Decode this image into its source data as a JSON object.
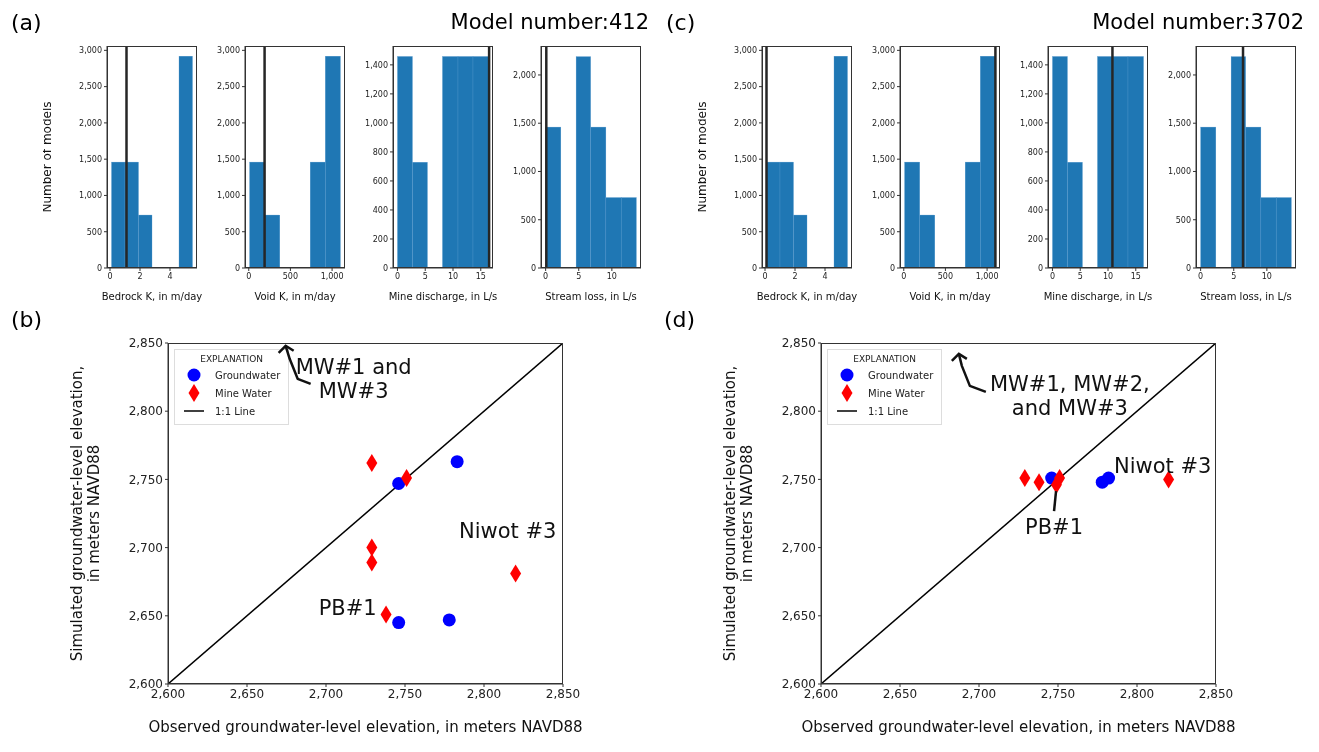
{
  "chart_data": [
    {
      "type": "histogram",
      "annotations": [
        "(a)"
      ],
      "ylabel": "Number of models",
      "xlabel": "Bedrock K, in m/day",
      "color": "#1f77b4",
      "bins": [
        0.1,
        1.0,
        1.9,
        2.8,
        3.7,
        4.6,
        5.5
      ],
      "values": [
        1460,
        1460,
        730,
        0,
        0,
        2920
      ],
      "xlim": [
        -0.2,
        5.8
      ],
      "xticks": [
        0,
        2,
        4
      ],
      "ylim": [
        0,
        3060
      ],
      "yticks": [
        0,
        500,
        {
          "value": 1000,
          "label": "1,000"
        },
        {
          "value": 1500,
          "label": "1,500"
        },
        {
          "value": 2000,
          "label": "2,000"
        },
        {
          "value": 2500,
          "label": "2,500"
        },
        {
          "value": 3000,
          "label": "3,000"
        }
      ],
      "ref_lines": [
        {
          "axis": "x",
          "value": 1.1,
          "color": "#262626"
        }
      ]
    },
    {
      "type": "histogram",
      "xlabel": "Void K, in m/day",
      "color": "#1f77b4",
      "bins": [
        10,
        192,
        373,
        555,
        737,
        918,
        1100
      ],
      "values": [
        1460,
        730,
        0,
        0,
        1460,
        2920
      ],
      "xlim": [
        -45,
        1155
      ],
      "xticks": [
        0,
        500,
        {
          "value": 1000,
          "label": "1,000"
        }
      ],
      "ylim": [
        0,
        3060
      ],
      "yticks": [
        0,
        500,
        {
          "value": 1000,
          "label": "1,000"
        },
        {
          "value": 1500,
          "label": "1,500"
        },
        {
          "value": 2000,
          "label": "2,000"
        },
        {
          "value": 2500,
          "label": "2,500"
        },
        {
          "value": 3000,
          "label": "3,000"
        }
      ],
      "ref_lines": [
        {
          "axis": "x",
          "value": 190,
          "color": "#262626"
        }
      ]
    },
    {
      "type": "histogram",
      "xlabel": "Mine discharge, in L/s",
      "color": "#1f77b4",
      "bins": [
        0,
        2.7,
        5.4,
        8.1,
        10.9,
        13.6,
        16.4
      ],
      "values": [
        1458,
        729,
        0,
        1458,
        1458,
        1458
      ],
      "xlim": [
        -0.8,
        17.2
      ],
      "xticks": [
        0,
        5,
        10,
        15
      ],
      "ylim": [
        0,
        1530
      ],
      "yticks": [
        0,
        200,
        400,
        600,
        800,
        {
          "value": 1000,
          "label": "1,000"
        },
        {
          "value": 1200,
          "label": "1,200"
        },
        {
          "value": 1400,
          "label": "1,400"
        }
      ],
      "ref_lines": [
        {
          "axis": "x",
          "value": 16.5,
          "color": "#262626"
        }
      ]
    },
    {
      "type": "histogram",
      "title": "Model number:412",
      "xlabel": "Stream loss, in L/s",
      "color": "#1f77b4",
      "bins": [
        0,
        2.3,
        4.6,
        6.8,
        9.1,
        11.4,
        13.7
      ],
      "values": [
        1460,
        0,
        2190,
        1460,
        730,
        730
      ],
      "xlim": [
        -0.7,
        14.4
      ],
      "xticks": [
        0,
        5,
        10
      ],
      "ylim": [
        0,
        2300
      ],
      "yticks": [
        0,
        500,
        {
          "value": 1000,
          "label": "1,000"
        },
        {
          "value": 1500,
          "label": "1,500"
        },
        {
          "value": 2000,
          "label": "2,000"
        }
      ],
      "ref_lines": [
        {
          "axis": "x",
          "value": 0.1,
          "color": "#262626"
        }
      ]
    },
    {
      "type": "histogram",
      "annotations": [
        "(c)"
      ],
      "ylabel": "Number of models",
      "xlabel": "Bedrock K, in m/day",
      "color": "#1f77b4",
      "bins": [
        0.1,
        1.0,
        1.9,
        2.8,
        3.7,
        4.6,
        5.5
      ],
      "values": [
        1460,
        1460,
        730,
        0,
        0,
        2920
      ],
      "xlim": [
        -0.2,
        5.8
      ],
      "xticks": [
        0,
        2,
        4
      ],
      "ylim": [
        0,
        3060
      ],
      "yticks": [
        0,
        500,
        {
          "value": 1000,
          "label": "1,000"
        },
        {
          "value": 1500,
          "label": "1,500"
        },
        {
          "value": 2000,
          "label": "2,000"
        },
        {
          "value": 2500,
          "label": "2,500"
        },
        {
          "value": 3000,
          "label": "3,000"
        }
      ],
      "ref_lines": [
        {
          "axis": "x",
          "value": 0.1,
          "color": "#262626"
        }
      ]
    },
    {
      "type": "histogram",
      "xlabel": "Void K, in m/day",
      "color": "#1f77b4",
      "bins": [
        10,
        192,
        373,
        555,
        737,
        918,
        1100
      ],
      "values": [
        1460,
        730,
        0,
        0,
        1460,
        2920
      ],
      "xlim": [
        -45,
        1155
      ],
      "xticks": [
        0,
        500,
        {
          "value": 1000,
          "label": "1,000"
        }
      ],
      "ylim": [
        0,
        3060
      ],
      "yticks": [
        0,
        500,
        {
          "value": 1000,
          "label": "1,000"
        },
        {
          "value": 1500,
          "label": "1,500"
        },
        {
          "value": 2000,
          "label": "2,000"
        },
        {
          "value": 2500,
          "label": "2,500"
        },
        {
          "value": 3000,
          "label": "3,000"
        }
      ],
      "ref_lines": [
        {
          "axis": "x",
          "value": 1100,
          "color": "#262626"
        }
      ]
    },
    {
      "type": "histogram",
      "xlabel": "Mine discharge, in L/s",
      "color": "#1f77b4",
      "bins": [
        0,
        2.7,
        5.4,
        8.1,
        10.9,
        13.6,
        16.4
      ],
      "values": [
        1458,
        729,
        0,
        1458,
        1458,
        1458
      ],
      "xlim": [
        -0.8,
        17.2
      ],
      "xticks": [
        0,
        5,
        10,
        15
      ],
      "ylim": [
        0,
        1530
      ],
      "yticks": [
        0,
        200,
        400,
        600,
        800,
        {
          "value": 1000,
          "label": "1,000"
        },
        {
          "value": 1200,
          "label": "1,200"
        },
        {
          "value": 1400,
          "label": "1,400"
        }
      ],
      "ref_lines": [
        {
          "axis": "x",
          "value": 10.8,
          "color": "#262626"
        }
      ]
    },
    {
      "type": "histogram",
      "title": "Model number:3702",
      "xlabel": "Stream loss, in L/s",
      "color": "#1f77b4",
      "bins": [
        0,
        2.3,
        4.6,
        6.8,
        9.1,
        11.4,
        13.7
      ],
      "values": [
        1460,
        0,
        2190,
        1460,
        730,
        730
      ],
      "xlim": [
        -0.7,
        14.4
      ],
      "xticks": [
        0,
        5,
        10
      ],
      "ylim": [
        0,
        2300
      ],
      "yticks": [
        0,
        500,
        {
          "value": 1000,
          "label": "1,000"
        },
        {
          "value": 1500,
          "label": "1,500"
        },
        {
          "value": 2000,
          "label": "2,000"
        }
      ],
      "ref_lines": [
        {
          "axis": "x",
          "value": 6.4,
          "color": "#262626"
        }
      ]
    },
    {
      "type": "scatter",
      "annotations": [
        "(b)",
        "MW#1 and\nMW#3",
        "Niwot #3",
        "PB#1"
      ],
      "xlabel": "Observed groundwater-level elevation, in meters NAVD88",
      "ylabel": "Simulated groundwater-level elevation,\nin meters NAVD88",
      "legend_title": "EXPLANATION",
      "legend": "top left",
      "xlim": [
        2600,
        2850
      ],
      "ylim": [
        2600,
        2850
      ],
      "xticks": [
        {
          "value": 2600,
          "label": "2,600"
        },
        {
          "value": 2650,
          "label": "2,650"
        },
        {
          "value": 2700,
          "label": "2,700"
        },
        {
          "value": 2750,
          "label": "2,750"
        },
        {
          "value": 2800,
          "label": "2,800"
        },
        {
          "value": 2850,
          "label": "2,850"
        }
      ],
      "yticks": [
        {
          "value": 2600,
          "label": "2,600"
        },
        {
          "value": 2650,
          "label": "2,650"
        },
        {
          "value": 2700,
          "label": "2,700"
        },
        {
          "value": 2750,
          "label": "2,750"
        },
        {
          "value": 2800,
          "label": "2,800"
        },
        {
          "value": 2850,
          "label": "2,850"
        }
      ],
      "series": [
        {
          "name": "Groundwater",
          "type": "scatter",
          "marker": "circle",
          "color": "#0000ff",
          "x": [
            2746,
            2783,
            2746,
            2778
          ],
          "values": [
            2747,
            2763,
            2645,
            2647
          ]
        },
        {
          "name": "Mine Water",
          "type": "scatter",
          "marker": "diamond",
          "color": "#ff0000",
          "x": [
            2729,
            2751,
            2729,
            2729,
            2738,
            2820
          ],
          "values": [
            2762,
            2751,
            2700,
            2689,
            2651,
            2681
          ]
        },
        {
          "name": "1:1 Line",
          "type": "line",
          "marker": "none",
          "color": "#000000",
          "x": [
            2600,
            2850
          ],
          "values": [
            2600,
            2850
          ]
        }
      ]
    },
    {
      "type": "scatter",
      "annotations": [
        "(d)",
        "MW#1, MW#2,\nand MW#3",
        "Niwot #3",
        "PB#1"
      ],
      "xlabel": "Observed groundwater-level elevation, in meters NAVD88",
      "ylabel": "Simulated groundwater-level elevation,\nin meters NAVD88",
      "legend_title": "EXPLANATION",
      "legend": "top left",
      "xlim": [
        2600,
        2850
      ],
      "ylim": [
        2600,
        2850
      ],
      "xticks": [
        {
          "value": 2600,
          "label": "2,600"
        },
        {
          "value": 2650,
          "label": "2,650"
        },
        {
          "value": 2700,
          "label": "2,700"
        },
        {
          "value": 2750,
          "label": "2,750"
        },
        {
          "value": 2800,
          "label": "2,800"
        },
        {
          "value": 2850,
          "label": "2,850"
        }
      ],
      "yticks": [
        {
          "value": 2600,
          "label": "2,600"
        },
        {
          "value": 2650,
          "label": "2,650"
        },
        {
          "value": 2700,
          "label": "2,700"
        },
        {
          "value": 2750,
          "label": "2,750"
        },
        {
          "value": 2800,
          "label": "2,800"
        },
        {
          "value": 2850,
          "label": "2,850"
        }
      ],
      "series": [
        {
          "name": "Groundwater",
          "type": "scatter",
          "marker": "circle",
          "color": "#0000ff",
          "x": [
            2746,
            2778,
            2782
          ],
          "values": [
            2751,
            2748,
            2751
          ]
        },
        {
          "name": "Mine Water",
          "type": "scatter",
          "marker": "diamond",
          "color": "#ff0000",
          "x": [
            2729,
            2738,
            2749,
            2751,
            2820
          ],
          "values": [
            2751,
            2748,
            2746,
            2751,
            2750
          ]
        },
        {
          "name": "1:1 Line",
          "type": "line",
          "marker": "none",
          "color": "#000000",
          "x": [
            2600,
            2850
          ],
          "values": [
            2600,
            2850
          ]
        }
      ]
    }
  ]
}
